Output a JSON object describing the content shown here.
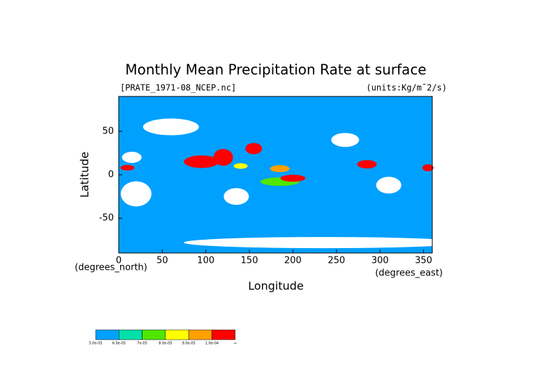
{
  "chart_data": {
    "type": "map",
    "title": "Monthly Mean Precipitation Rate at surface",
    "file_label": "[PRATE_1971-08_NCEP.nc]",
    "units_label": "(units:Kg/m¯2/s)",
    "x_label": "Longitude",
    "y_label": "Latitude",
    "x_units": "(degrees_east)",
    "y_units": "(degrees_north)",
    "xlim": [
      0,
      360
    ],
    "ylim": [
      -90,
      90
    ],
    "xticks": [
      0,
      50,
      100,
      150,
      200,
      250,
      300,
      350
    ],
    "yticks": [
      -50,
      0,
      50
    ],
    "colorbar": {
      "colors": [
        "#00a0ff",
        "#00e0a8",
        "#50e600",
        "#ffff00",
        "#ffa000",
        "#ff0000"
      ],
      "labels": [
        "5.0e-05",
        "6.0e-05",
        "7e-05",
        "8.0e-05",
        "9.0e-05",
        "1.0e-04",
        "∞"
      ]
    }
  }
}
